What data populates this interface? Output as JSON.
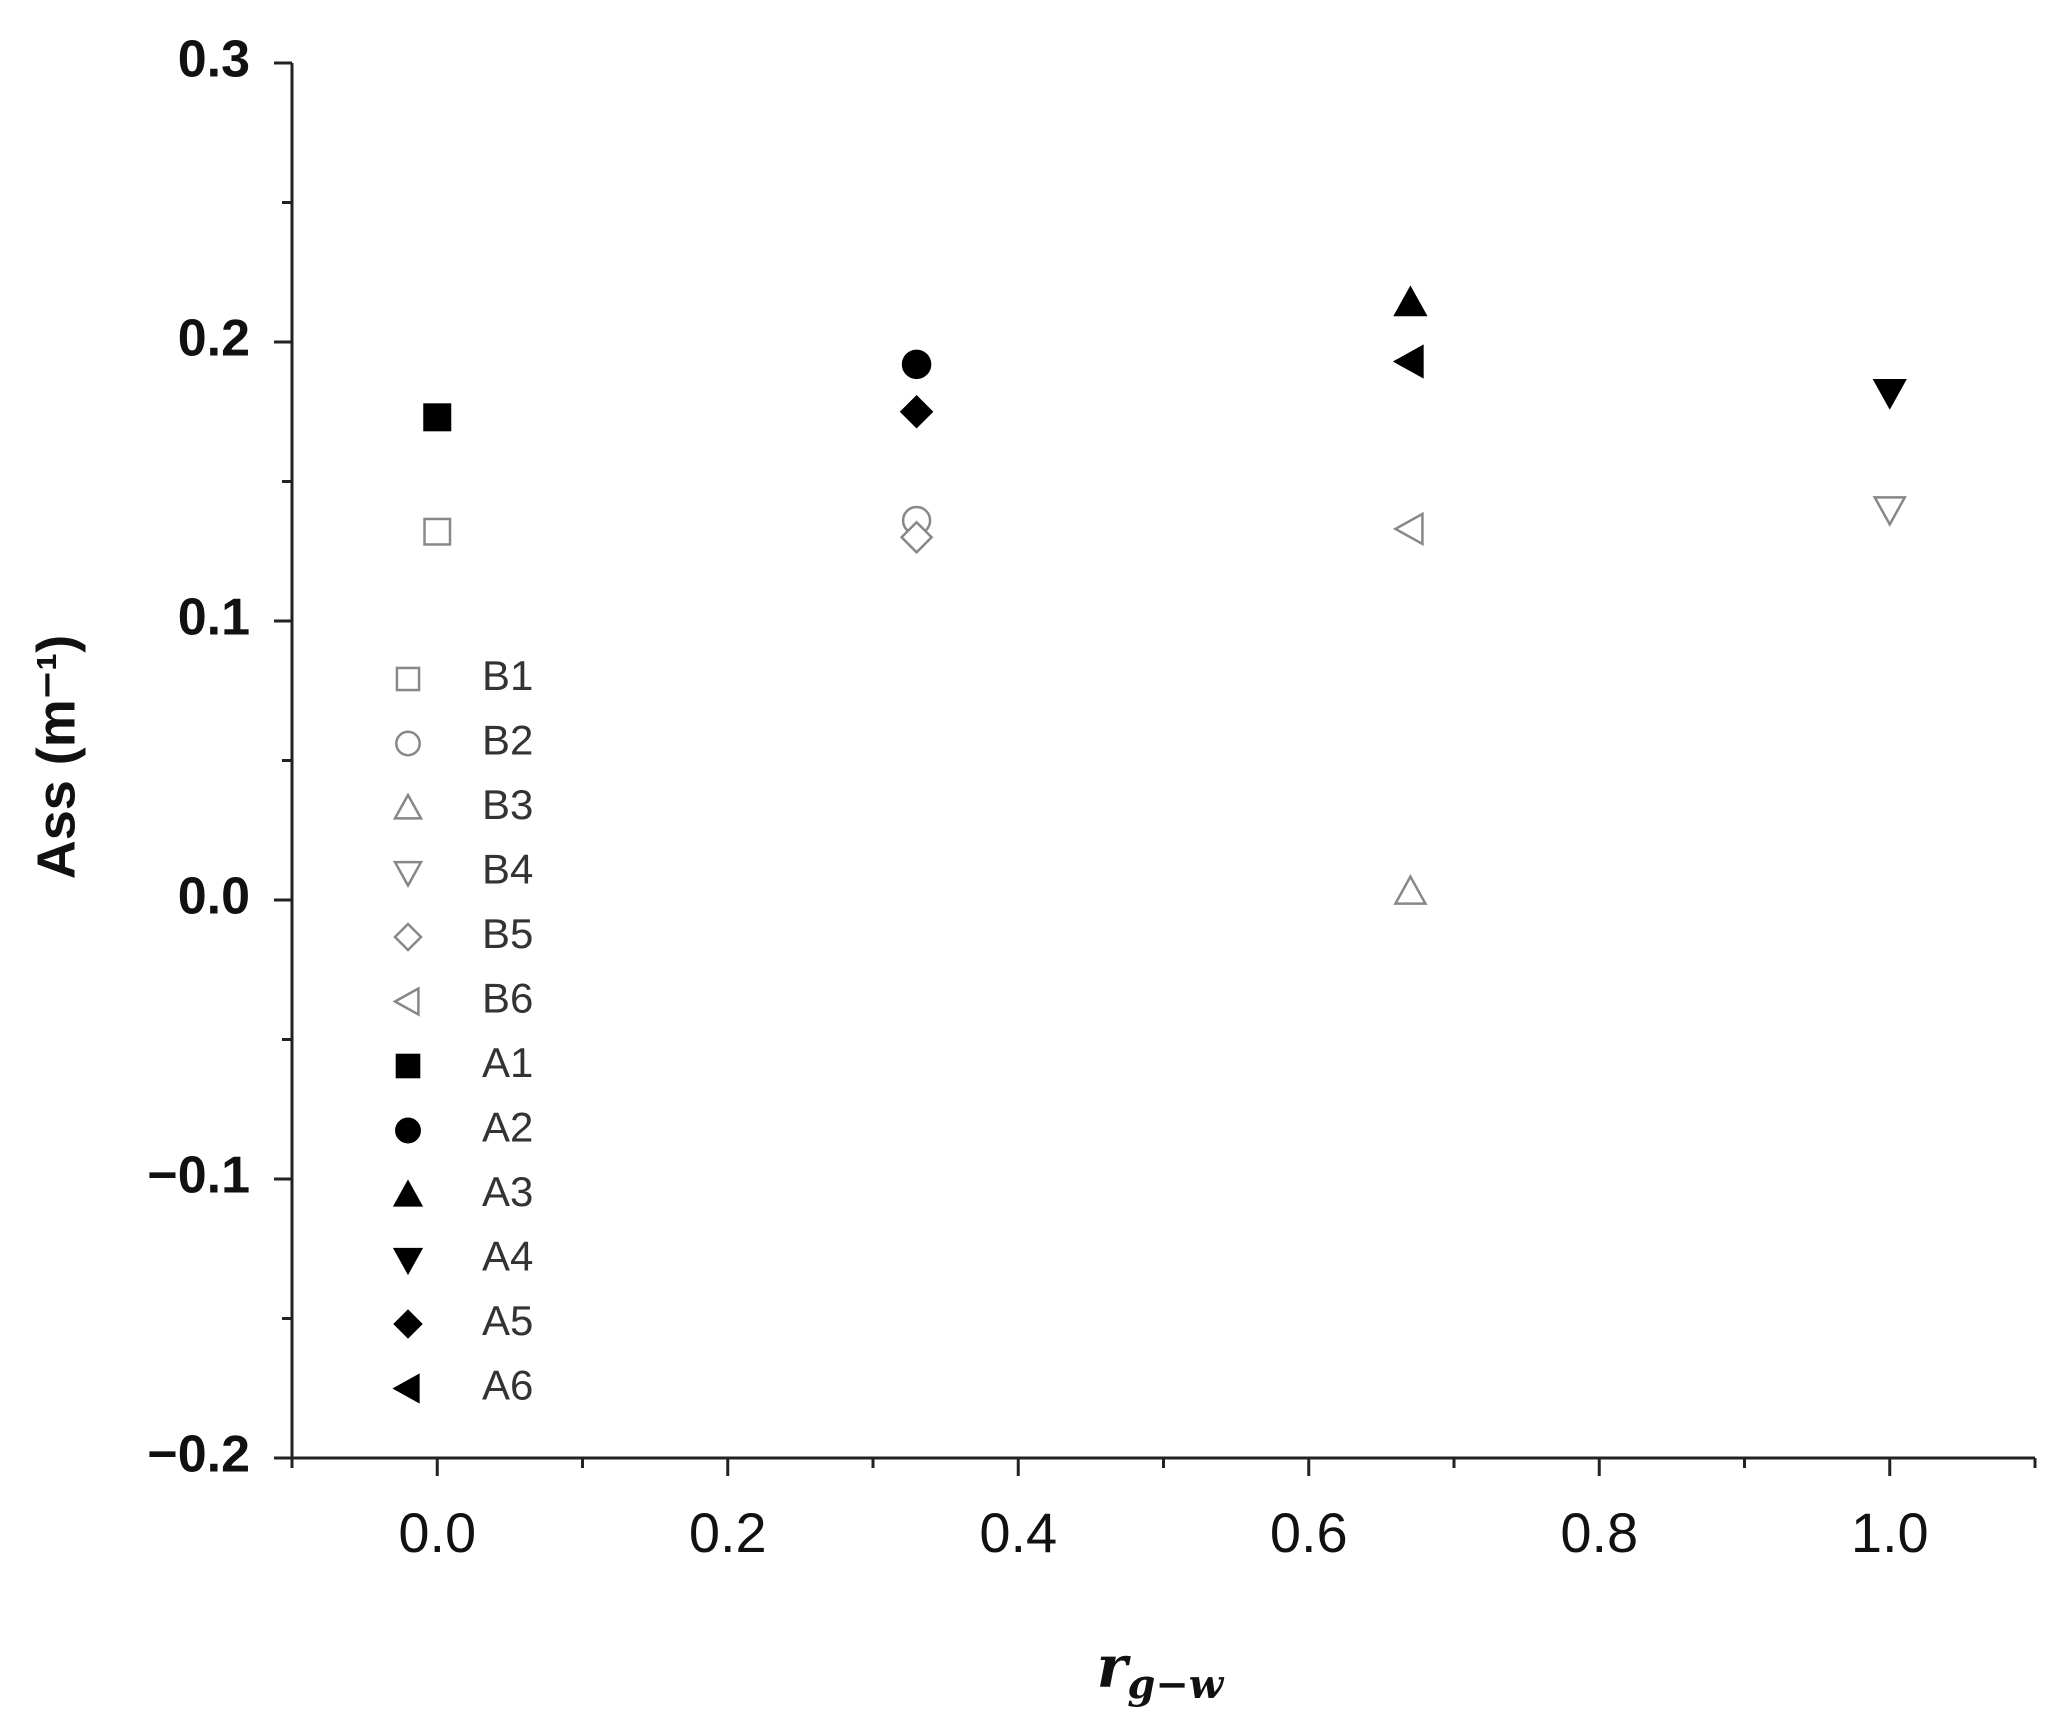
{
  "chart_data": {
    "type": "scatter",
    "y_label": "Ass (m⁻¹)",
    "x_label": "r",
    "x_label_sub": "g−w",
    "xlim": [
      -0.1,
      1.1
    ],
    "xticks": [
      {
        "value": 0,
        "label": "0.0"
      },
      0.2,
      0.4,
      0.6,
      0.8,
      {
        "value": 1,
        "label": "1.0"
      }
    ],
    "ylim": [
      -0.2,
      0.3
    ],
    "yticks": [
      {
        "value": -0.2,
        "label": "−0.2"
      },
      {
        "value": -0.1,
        "label": "−0.1"
      },
      {
        "value": 0,
        "label": "0.0"
      },
      0.1,
      0.2,
      0.3
    ],
    "legend": "lower-left",
    "series": [
      {
        "name": "B1",
        "color": "#888888",
        "marker": "square",
        "filled": false,
        "x": [
          0
        ],
        "values": [
          0.132
        ]
      },
      {
        "name": "B2",
        "color": "#888888",
        "marker": "circle",
        "filled": false,
        "x": [
          0.33
        ],
        "values": [
          0.136
        ]
      },
      {
        "name": "B3",
        "color": "#888888",
        "marker": "triangle-up",
        "filled": false,
        "x": [
          0.67
        ],
        "values": [
          0.003
        ]
      },
      {
        "name": "B4",
        "color": "#888888",
        "marker": "triangle-down",
        "filled": false,
        "x": [
          1.0
        ],
        "values": [
          0.14
        ]
      },
      {
        "name": "B5",
        "color": "#888888",
        "marker": "diamond",
        "filled": false,
        "x": [
          0.33
        ],
        "values": [
          0.13
        ]
      },
      {
        "name": "B6",
        "color": "#888888",
        "marker": "triangle-left",
        "filled": false,
        "x": [
          0.67
        ],
        "values": [
          0.133
        ]
      },
      {
        "name": "A1",
        "color": "#000000",
        "marker": "square",
        "filled": true,
        "x": [
          0
        ],
        "values": [
          0.173
        ]
      },
      {
        "name": "A2",
        "color": "#000000",
        "marker": "circle",
        "filled": true,
        "x": [
          0.33
        ],
        "values": [
          0.192
        ]
      },
      {
        "name": "A3",
        "color": "#000000",
        "marker": "triangle-up",
        "filled": true,
        "x": [
          0.67
        ],
        "values": [
          0.214
        ]
      },
      {
        "name": "A4",
        "color": "#000000",
        "marker": "triangle-down",
        "filled": true,
        "x": [
          1.0
        ],
        "values": [
          0.182
        ]
      },
      {
        "name": "A5",
        "color": "#000000",
        "marker": "diamond",
        "filled": true,
        "x": [
          0.33
        ],
        "values": [
          0.175
        ]
      },
      {
        "name": "A6",
        "color": "#000000",
        "marker": "triangle-left",
        "filled": true,
        "x": [
          0.67
        ],
        "values": [
          0.193
        ]
      }
    ]
  }
}
